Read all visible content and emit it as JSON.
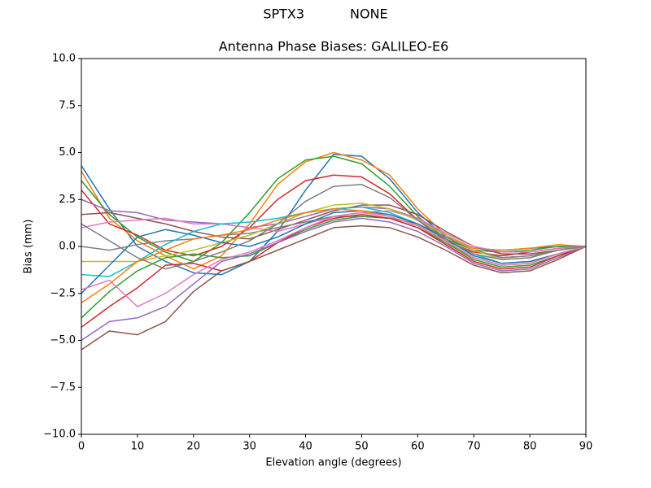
{
  "chart_data": {
    "type": "line",
    "suptitle": "SPTX3           NONE",
    "title": "Antenna Phase Biases: GALILEO-E6",
    "xlabel": "Elevation angle (degrees)",
    "ylabel": "Bias (mm)",
    "x": [
      0,
      5,
      10,
      15,
      20,
      25,
      30,
      35,
      40,
      45,
      50,
      55,
      60,
      65,
      70,
      75,
      80,
      85,
      90
    ],
    "xlim": [
      0,
      90
    ],
    "xticks": [
      0,
      10,
      20,
      30,
      40,
      50,
      60,
      70,
      80,
      90
    ],
    "ylim": [
      -10,
      10
    ],
    "yticks": [
      {
        "value": -10,
        "label": "−10.0"
      },
      {
        "value": -7.5,
        "label": "−7.5"
      },
      {
        "value": -5,
        "label": "−5.0"
      },
      {
        "value": -2.5,
        "label": "−2.5"
      },
      {
        "value": 0,
        "label": "0.0"
      },
      {
        "value": 2.5,
        "label": "2.5"
      },
      {
        "value": 5,
        "label": "5.0"
      },
      {
        "value": 7.5,
        "label": "7.5"
      },
      {
        "value": 10,
        "label": "10.0"
      }
    ],
    "grid": false,
    "series": [
      {
        "color": "#1f77b4",
        "values": [
          4.3,
          2.0,
          0.0,
          -0.8,
          -1.4,
          -1.5,
          -0.8,
          0.8,
          3.0,
          4.9,
          4.8,
          3.6,
          1.8,
          0.5,
          -0.1,
          -0.2,
          -0.1,
          0.0,
          0.0
        ]
      },
      {
        "color": "#ff7f0e",
        "values": [
          4.0,
          1.5,
          0.3,
          -0.5,
          -1.2,
          -0.5,
          1.2,
          3.3,
          4.5,
          5.0,
          4.6,
          3.8,
          2.0,
          0.6,
          -0.1,
          -0.2,
          -0.1,
          0.1,
          0.0
        ]
      },
      {
        "color": "#2ca02c",
        "values": [
          3.5,
          1.7,
          0.5,
          -0.3,
          -0.8,
          0.2,
          1.8,
          3.6,
          4.6,
          4.8,
          4.4,
          3.2,
          1.6,
          0.4,
          -0.2,
          -0.3,
          -0.2,
          0.0,
          0.0
        ]
      },
      {
        "color": "#d62728",
        "values": [
          3.0,
          1.2,
          0.6,
          -0.2,
          -0.5,
          0.0,
          1.0,
          2.5,
          3.5,
          3.8,
          3.7,
          2.8,
          1.4,
          0.3,
          -0.3,
          -0.5,
          -0.3,
          -0.1,
          0.0
        ]
      },
      {
        "color": "#9467bd",
        "values": [
          2.5,
          1.9,
          1.8,
          1.4,
          1.3,
          1.2,
          1.0,
          1.2,
          1.6,
          2.0,
          2.1,
          2.0,
          1.5,
          0.6,
          -0.2,
          -0.6,
          -0.5,
          -0.2,
          0.0
        ]
      },
      {
        "color": "#8c564b",
        "values": [
          1.7,
          1.8,
          1.5,
          1.2,
          0.8,
          0.5,
          0.4,
          0.9,
          1.4,
          1.9,
          2.2,
          2.2,
          1.7,
          0.8,
          0.0,
          -0.4,
          -0.4,
          -0.2,
          0.0
        ]
      },
      {
        "color": "#e377c2",
        "values": [
          1.0,
          1.3,
          1.4,
          1.5,
          1.2,
          1.2,
          1.0,
          0.8,
          1.2,
          1.6,
          1.8,
          1.9,
          1.5,
          0.7,
          0.0,
          -0.3,
          -0.3,
          -0.1,
          0.0
        ]
      },
      {
        "color": "#7f7f7f",
        "values": [
          0.0,
          -0.2,
          0.1,
          0.3,
          0.4,
          0.6,
          0.7,
          1.0,
          1.3,
          1.6,
          1.6,
          1.5,
          1.2,
          0.5,
          -0.2,
          -0.6,
          -0.5,
          -0.2,
          0.0
        ]
      },
      {
        "color": "#bcbd22",
        "values": [
          -0.8,
          -0.8,
          -0.8,
          -0.5,
          -0.2,
          0.2,
          0.6,
          1.2,
          1.8,
          2.2,
          2.3,
          2.0,
          1.4,
          0.6,
          -0.2,
          -0.7,
          -0.6,
          -0.2,
          0.0
        ]
      },
      {
        "color": "#17becf",
        "values": [
          -1.5,
          -1.6,
          -0.8,
          0.1,
          0.8,
          1.2,
          1.3,
          1.5,
          1.8,
          2.0,
          2.1,
          1.8,
          1.2,
          0.4,
          -0.4,
          -0.9,
          -0.8,
          -0.4,
          0.0
        ]
      },
      {
        "color": "#1f77b4",
        "values": [
          -2.5,
          -1.0,
          0.5,
          0.9,
          0.6,
          0.2,
          0.0,
          0.5,
          1.2,
          1.8,
          1.9,
          1.7,
          1.2,
          0.4,
          -0.5,
          -0.9,
          -0.8,
          -0.4,
          0.0
        ]
      },
      {
        "color": "#ff7f0e",
        "values": [
          -3.0,
          -2.0,
          -0.8,
          -0.2,
          0.4,
          0.6,
          0.9,
          1.4,
          1.8,
          2.0,
          1.9,
          1.6,
          1.1,
          0.2,
          -0.6,
          -1.0,
          -0.9,
          -0.4,
          0.0
        ]
      },
      {
        "color": "#2ca02c",
        "values": [
          -3.8,
          -2.4,
          -1.3,
          -0.6,
          -0.4,
          -0.6,
          -0.5,
          0.2,
          0.9,
          1.4,
          1.6,
          1.5,
          1.0,
          0.2,
          -0.7,
          -1.1,
          -1.0,
          -0.5,
          0.0
        ]
      },
      {
        "color": "#d62728",
        "values": [
          -4.3,
          -3.2,
          -2.2,
          -1.0,
          -0.9,
          -1.3,
          -0.8,
          0.2,
          1.0,
          1.5,
          1.7,
          1.5,
          1.0,
          0.1,
          -0.8,
          -1.2,
          -1.1,
          -0.5,
          0.0
        ]
      },
      {
        "color": "#9467bd",
        "values": [
          -5.0,
          -4.0,
          -3.8,
          -3.2,
          -2.0,
          -0.8,
          -0.4,
          0.2,
          0.8,
          1.3,
          1.5,
          1.3,
          0.8,
          0.0,
          -0.9,
          -1.3,
          -1.2,
          -0.6,
          0.0
        ]
      },
      {
        "color": "#8c564b",
        "values": [
          -5.5,
          -4.5,
          -4.7,
          -4.0,
          -2.4,
          -1.3,
          -0.8,
          -0.2,
          0.4,
          1.0,
          1.1,
          1.0,
          0.5,
          -0.2,
          -1.0,
          -1.4,
          -1.3,
          -0.7,
          0.0
        ]
      },
      {
        "color": "#e377c2",
        "values": [
          -2.3,
          -1.8,
          -3.2,
          -2.5,
          -1.5,
          -0.7,
          -0.3,
          0.3,
          1.0,
          1.6,
          1.8,
          1.6,
          1.1,
          0.3,
          -0.6,
          -1.0,
          -0.9,
          -0.4,
          0.0
        ]
      },
      {
        "color": "#7f7f7f",
        "values": [
          1.2,
          0.3,
          -0.6,
          -1.2,
          -0.8,
          -0.3,
          0.3,
          1.2,
          2.4,
          3.2,
          3.3,
          2.6,
          1.4,
          0.4,
          -0.4,
          -0.7,
          -0.6,
          -0.2,
          0.0
        ]
      }
    ]
  }
}
